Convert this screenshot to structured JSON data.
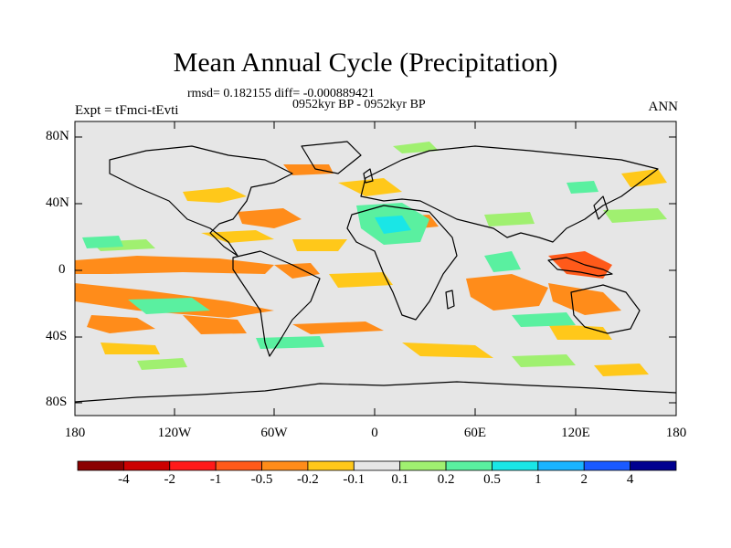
{
  "title": "Mean Annual Cycle (Precipitation)",
  "stats_line": "rmsd= 0.182155 diff= -0.000889421",
  "period_line": "0952kyr BP - 0952kyr BP",
  "experiment": "Expt = tFmci-tEvti",
  "season": "ANN",
  "lat_labels": [
    "80N",
    "40N",
    "0",
    "40S",
    "80S"
  ],
  "lon_labels": [
    "180",
    "120W",
    "60W",
    "0",
    "60E",
    "120E",
    "180"
  ],
  "colorbar": {
    "colors": [
      "#8b0000",
      "#cc0000",
      "#ff1a1a",
      "#ff5a1a",
      "#ff8c1a",
      "#ffc81a",
      "#e6e6e6",
      "#a0f070",
      "#5af0a0",
      "#1ae6e6",
      "#1ab4ff",
      "#1a5aff",
      "#000090"
    ],
    "labels": [
      "-4",
      "-2",
      "-1",
      "-0.5",
      "-0.2",
      "-0.1",
      "0.1",
      "0.2",
      "0.5",
      "1",
      "2",
      "4"
    ]
  }
}
